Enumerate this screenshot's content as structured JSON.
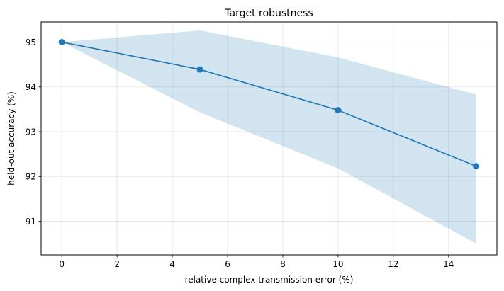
{
  "chart_data": {
    "type": "line",
    "title": "Target robustness",
    "xlabel": "relative complex transmission error (%)",
    "ylabel": "held-out accuracy (%)",
    "xlim": [
      -0.75,
      15.75
    ],
    "ylim": [
      90.25,
      95.45
    ],
    "xticks": [
      0,
      2,
      4,
      6,
      8,
      10,
      12,
      14
    ],
    "yticks": [
      91,
      92,
      93,
      94,
      95
    ],
    "grid": true,
    "colors": {
      "line": "#1f77b4",
      "band": "#1f77b4"
    },
    "series": [
      {
        "x": [
          0,
          5,
          10,
          15
        ],
        "y": [
          95.0,
          94.39,
          93.48,
          92.23
        ],
        "upper": [
          95.0,
          95.26,
          94.66,
          93.83
        ],
        "lower": [
          95.0,
          93.43,
          92.18,
          90.5
        ],
        "marker": "circle"
      }
    ]
  }
}
